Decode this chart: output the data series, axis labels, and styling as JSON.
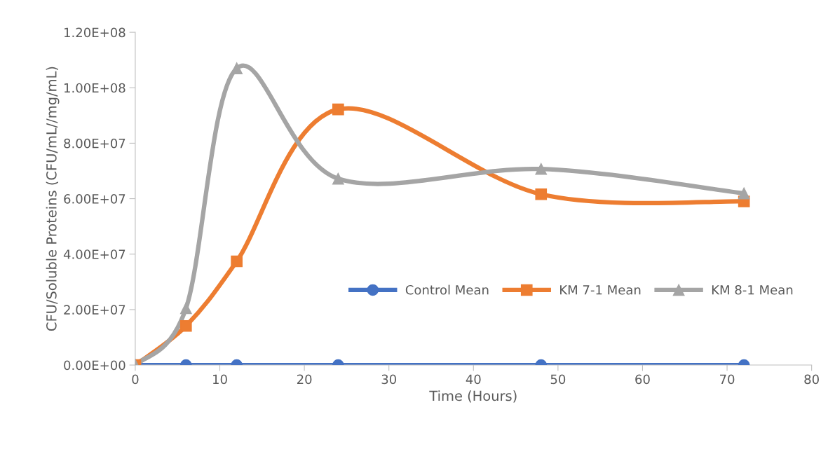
{
  "chart_data": {
    "type": "line",
    "xlabel": "Time (Hours)",
    "ylabel": "CFU/Soluble Proteins (CFU/mL//mg/mL)",
    "x": [
      0,
      6,
      12,
      24,
      48,
      72
    ],
    "series": [
      {
        "name": "Control Mean",
        "color": "#4472c4",
        "marker": "circle",
        "values": [
          0,
          0,
          0,
          0,
          0,
          0
        ]
      },
      {
        "name": "KM 7-1 Mean",
        "color": "#ed7d31",
        "marker": "square",
        "values": [
          0,
          14100000,
          37400000,
          92200000,
          61600000,
          59000000
        ]
      },
      {
        "name": "KM 8-1 Mean",
        "color": "#a5a5a5",
        "marker": "triangle",
        "values": [
          0,
          20500000,
          107000000,
          67200000,
          70700000,
          61900000
        ]
      }
    ],
    "xlim": [
      0,
      80
    ],
    "xticks": [
      0,
      10,
      20,
      30,
      40,
      50,
      60,
      70,
      80
    ],
    "ylim": [
      0,
      120000000
    ],
    "yticks": [
      {
        "value": 0,
        "label": "0.00E+00"
      },
      {
        "value": 20000000,
        "label": "2.00E+07"
      },
      {
        "value": 40000000,
        "label": "4.00E+07"
      },
      {
        "value": 60000000,
        "label": "6.00E+07"
      },
      {
        "value": 80000000,
        "label": "8.00E+07"
      },
      {
        "value": 100000000,
        "label": "1.00E+08"
      },
      {
        "value": 120000000,
        "label": "1.20E+08"
      }
    ],
    "grid": false,
    "legend": "lower right",
    "line_style": "solid"
  }
}
